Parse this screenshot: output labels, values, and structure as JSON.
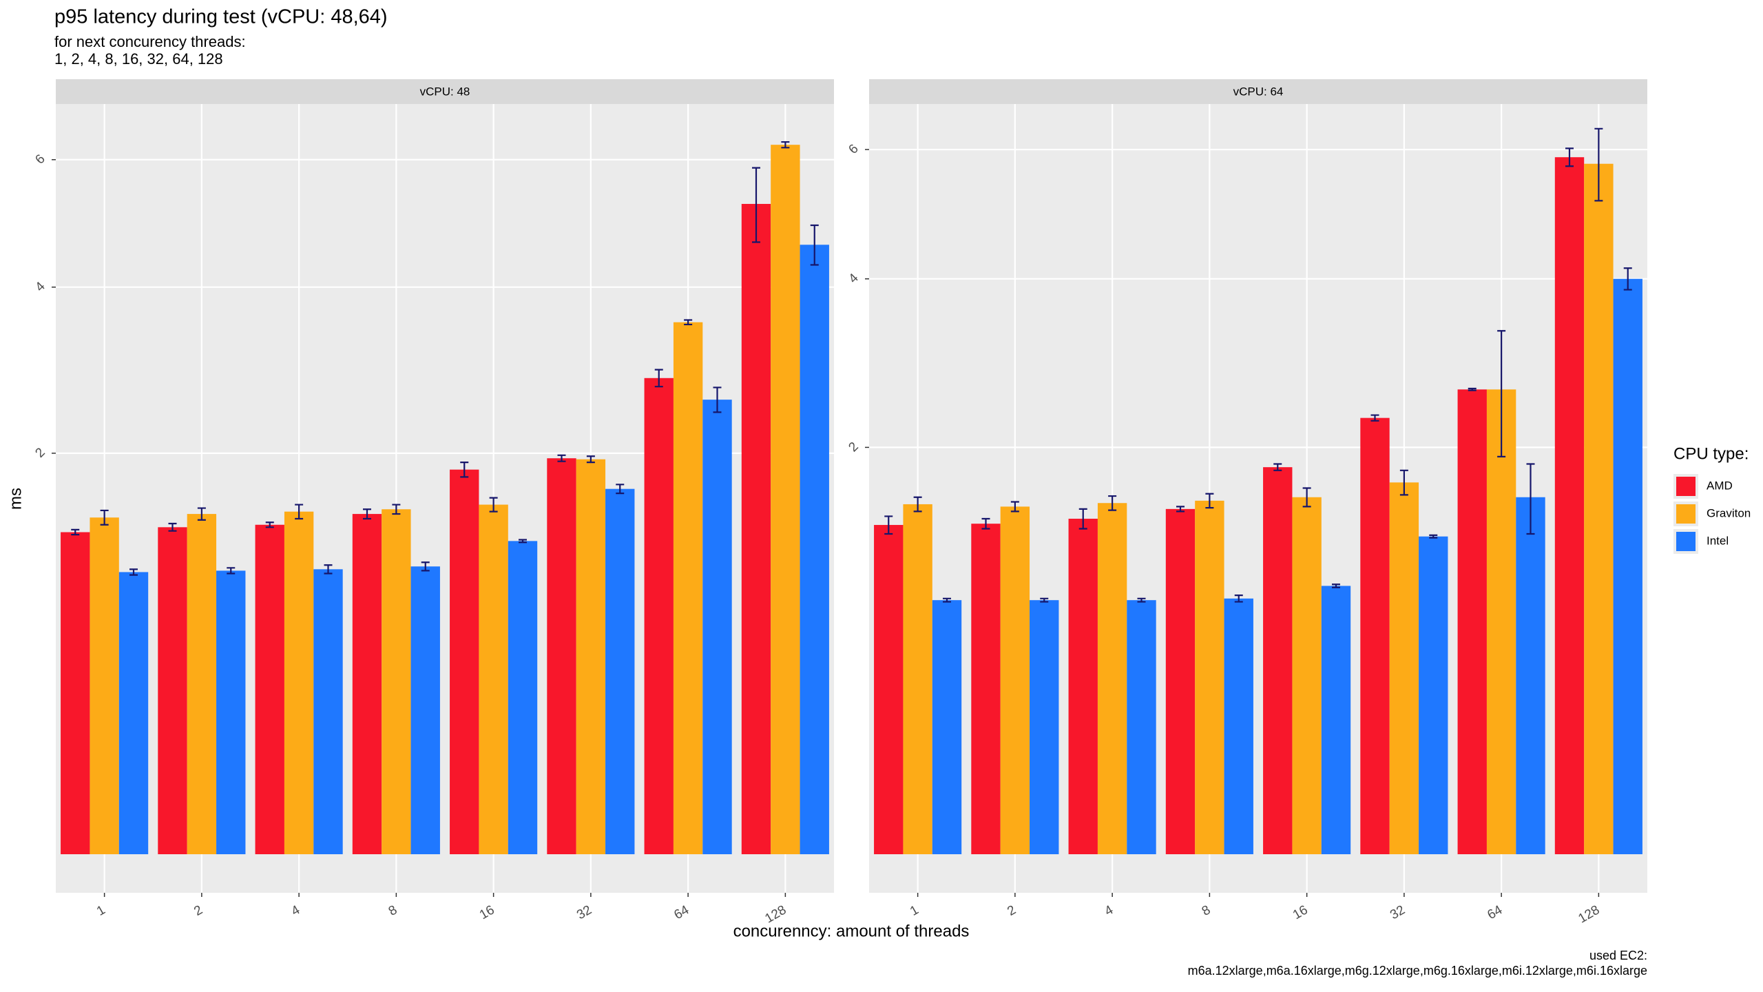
{
  "title": "p95 latency during test  (vCPU: 48,64)",
  "subtitle": [
    "for next concurency threads:",
    "1, 2, 4, 8, 16, 32, 64, 128"
  ],
  "x_label": "concurennсy: amount of threads",
  "y_label": "ms",
  "legend_title": "CPU type:",
  "caption": [
    "used EC2:",
    "m6a.12xlarge,m6a.16xlarge,m6g.12xlarge,m6g.16xlarge,m6i.12xlarge,m6i.16xlarge"
  ],
  "chart_data": [
    {
      "type": "bar",
      "strip": "vCPU: 48",
      "scale": "sqrt",
      "categories": [
        "1",
        "2",
        "4",
        "8",
        "16",
        "32",
        "64",
        "128"
      ],
      "ylim": [
        0,
        7
      ],
      "yticks": [
        2,
        4,
        6
      ],
      "grid": true,
      "series": [
        {
          "name": "AMD",
          "color": "#f8172b",
          "values": [
            1.29,
            1.33,
            1.35,
            1.44,
            1.84,
            1.95,
            2.82,
            5.26
          ],
          "errors": [
            0.02,
            0.03,
            0.02,
            0.04,
            0.07,
            0.03,
            0.1,
            0.6
          ]
        },
        {
          "name": "Graviton",
          "color": "#fdab17",
          "values": [
            1.41,
            1.44,
            1.46,
            1.48,
            1.52,
            1.94,
            3.52,
            6.26
          ],
          "errors": [
            0.06,
            0.05,
            0.06,
            0.04,
            0.06,
            0.03,
            0.03,
            0.05
          ]
        },
        {
          "name": "Intel",
          "color": "#1f78ff",
          "values": [
            0.99,
            1.0,
            1.01,
            1.03,
            1.22,
            1.66,
            2.57,
            4.62
          ],
          "errors": [
            0.02,
            0.02,
            0.03,
            0.03,
            0.01,
            0.04,
            0.14,
            0.3
          ]
        }
      ]
    },
    {
      "type": "bar",
      "strip": "vCPU: 64",
      "scale": "sqrt",
      "categories": [
        "1",
        "2",
        "4",
        "8",
        "16",
        "32",
        "64",
        "128"
      ],
      "ylim": [
        0,
        6.8
      ],
      "yticks": [
        2,
        4,
        6
      ],
      "grid": true,
      "series": [
        {
          "name": "AMD",
          "color": "#f8172b",
          "values": [
            1.31,
            1.32,
            1.36,
            1.44,
            1.81,
            2.3,
            2.61,
            5.87
          ],
          "errors": [
            0.07,
            0.04,
            0.08,
            0.02,
            0.03,
            0.03,
            0.01,
            0.15
          ]
        },
        {
          "name": "Graviton",
          "color": "#fdab17",
          "values": [
            1.48,
            1.46,
            1.49,
            1.51,
            1.54,
            1.67,
            2.61,
            5.76
          ],
          "errors": [
            0.06,
            0.04,
            0.06,
            0.06,
            0.08,
            0.11,
            0.7,
            0.6
          ]
        },
        {
          "name": "Intel",
          "color": "#1f78ff",
          "values": [
            0.78,
            0.78,
            0.78,
            0.79,
            0.87,
            1.22,
            1.54,
            4.0
          ],
          "errors": [
            0.01,
            0.01,
            0.01,
            0.02,
            0.01,
            0.01,
            0.3,
            0.15
          ]
        }
      ]
    }
  ]
}
